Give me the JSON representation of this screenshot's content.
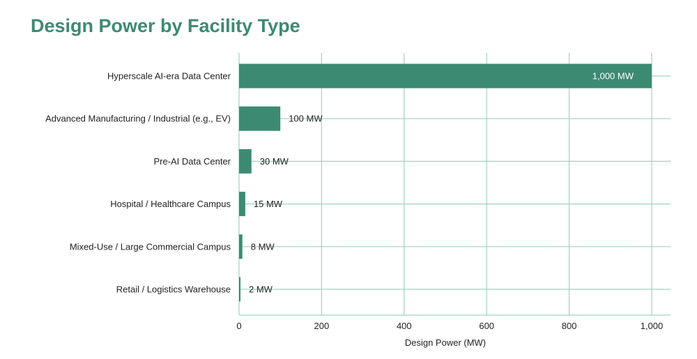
{
  "chart_data": {
    "type": "bar",
    "orientation": "horizontal",
    "title": "Design Power by Facility Type",
    "xlabel": "Design Power (MW)",
    "ylabel": "",
    "categories": [
      "Hyperscale AI-era Data Center",
      "Advanced Manufacturing / Industrial (e.g., EV)",
      "Pre-AI Data Center",
      "Hospital / Healthcare Campus",
      "Mixed-Use / Large Commercial Campus",
      "Retail / Logistics Warehouse"
    ],
    "values": [
      1000,
      100,
      30,
      15,
      8,
      2
    ],
    "data_labels": [
      "1,000 MW",
      "100 MW",
      "30 MW",
      "15 MW",
      "8 MW",
      "2 MW"
    ],
    "xlim": [
      0,
      1000
    ],
    "xticks": [
      0,
      200,
      400,
      600,
      800,
      1000
    ],
    "xtick_labels": [
      "0",
      "200",
      "400",
      "600",
      "800",
      "1,000"
    ],
    "grid": true,
    "legend": "none"
  },
  "colors": {
    "bar": "#3d8a73",
    "title": "#3d8a73",
    "grid": "#9fd3c4",
    "label_inside": "#ffffff",
    "label_outside": "#222222"
  }
}
